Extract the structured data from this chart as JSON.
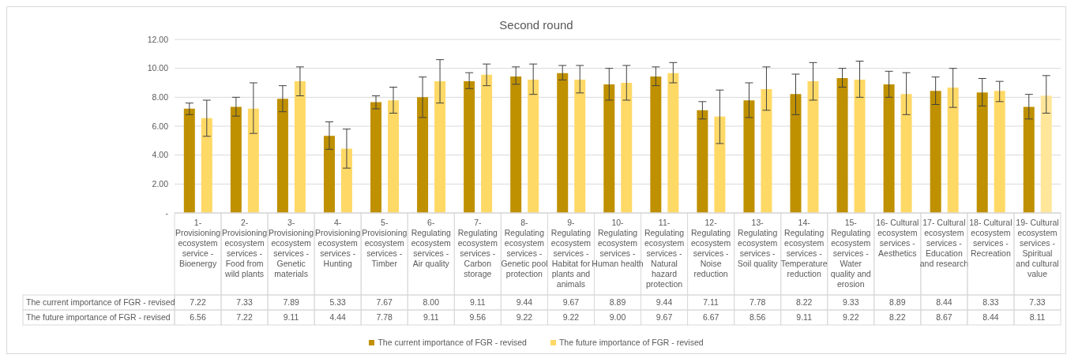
{
  "chart_data": {
    "type": "bar",
    "title": "Second round",
    "categories": [
      "1- Provisioning ecosystem service - Bioenergy",
      "2- Provisioning ecosystem services - Food from wild plants",
      "3- Provisioning ecosystem services - Genetic materials",
      "4- Provisioning ecosystem services - Hunting",
      "5- Provisioning ecosystem services - Timber",
      "6- Regulating ecosystem services - Air quality",
      "7- Regulating ecosystem services - Carbon storage",
      "8- Regulating ecosystem services - Genetic pool protection",
      "9- Regulating ecosystem services - Habitat for plants and animals",
      "10- Regulating ecosystem services - Human health",
      "11- Regulating ecosystem services - Natural hazard protection",
      "12- Regulating ecosystem services - Noise reduction",
      "13- Regulating ecosystem services - Soil quality",
      "14- Regulating ecosystem services - Temperature reduction",
      "15- Regulating ecosystem services - Water quality and erosion",
      "16- Cultural ecosystem services - Aesthetics",
      "17- Cultural ecosystem services - Education and research",
      "18- Cultural ecosystem services - Recreation",
      "19- Cultural ecosystem services - Spiritual and cultural value"
    ],
    "series": [
      {
        "name": "The current importance of FGR - revised",
        "color": "#bf9000",
        "values": [
          7.22,
          7.33,
          7.89,
          5.33,
          7.67,
          8.0,
          9.11,
          9.44,
          9.67,
          8.89,
          9.44,
          7.11,
          7.78,
          8.22,
          9.33,
          8.89,
          8.44,
          8.33,
          7.33
        ],
        "value_labels": [
          "7.22",
          "7.33",
          "7.89",
          "5.33",
          "7.67",
          "8.00",
          "9.11",
          "9.44",
          "9.67",
          "8.89",
          "9.44",
          "7.11",
          "7.78",
          "8.22",
          "9.33",
          "8.89",
          "8.44",
          "8.33",
          "7.33"
        ],
        "errors": [
          [
            6.8,
            7.6
          ],
          [
            6.7,
            8.0
          ],
          [
            7.0,
            8.8
          ],
          [
            4.4,
            6.3
          ],
          [
            7.2,
            8.1
          ],
          [
            6.6,
            9.4
          ],
          [
            8.6,
            9.7
          ],
          [
            8.9,
            10.1
          ],
          [
            9.2,
            10.2
          ],
          [
            7.8,
            10.0
          ],
          [
            8.8,
            10.1
          ],
          [
            6.5,
            7.7
          ],
          [
            6.6,
            9.0
          ],
          [
            6.8,
            9.6
          ],
          [
            8.7,
            10.0
          ],
          [
            8.0,
            9.8
          ],
          [
            7.5,
            9.4
          ],
          [
            7.4,
            9.3
          ],
          [
            6.5,
            8.2
          ]
        ]
      },
      {
        "name": "The future importance of FGR - revised",
        "color": "#ffd966",
        "colors": [
          "#ffd966",
          "#ffd966",
          "#ffd966",
          "#ffd966",
          "#ffd966",
          "#ffd966",
          "#ffd966",
          "#ffd966",
          "#ffd966",
          "#ffd966",
          "#ffd966",
          "#ffd966",
          "#ffd966",
          "#ffd966",
          "#ffd966",
          "#ffd966",
          "#ffd966",
          "#ffd966",
          "#ffe699"
        ],
        "values": [
          6.56,
          7.22,
          9.11,
          4.44,
          7.78,
          9.11,
          9.56,
          9.22,
          9.22,
          9.0,
          9.67,
          6.67,
          8.56,
          9.11,
          9.22,
          8.22,
          8.67,
          8.44,
          8.11
        ],
        "value_labels": [
          "6.56",
          "7.22",
          "9.11",
          "4.44",
          "7.78",
          "9.11",
          "9.56",
          "9.22",
          "9.22",
          "9.00",
          "9.67",
          "6.67",
          "8.56",
          "9.11",
          "9.22",
          "8.22",
          "8.67",
          "8.44",
          "8.11"
        ],
        "errors": [
          [
            5.3,
            7.8
          ],
          [
            5.5,
            9.0
          ],
          [
            8.1,
            10.1
          ],
          [
            3.1,
            5.8
          ],
          [
            6.9,
            8.7
          ],
          [
            7.6,
            10.6
          ],
          [
            8.8,
            10.3
          ],
          [
            8.2,
            10.3
          ],
          [
            8.3,
            10.2
          ],
          [
            7.8,
            10.2
          ],
          [
            9.0,
            10.4
          ],
          [
            4.8,
            8.5
          ],
          [
            7.1,
            10.1
          ],
          [
            7.8,
            10.4
          ],
          [
            8.0,
            10.5
          ],
          [
            6.8,
            9.7
          ],
          [
            7.3,
            10.0
          ],
          [
            7.7,
            9.1
          ],
          [
            6.9,
            9.5
          ]
        ]
      }
    ],
    "ylim": [
      0,
      12
    ],
    "yticks": [
      {
        "value": 0,
        "label": "-"
      },
      {
        "value": 2,
        "label": "2.00"
      },
      {
        "value": 4,
        "label": "4.00"
      },
      {
        "value": 6,
        "label": "6.00"
      },
      {
        "value": 8,
        "label": "8.00"
      },
      {
        "value": 10,
        "label": "10.00"
      },
      {
        "value": 12,
        "label": "12.00"
      }
    ],
    "grid": "y",
    "legend": "bottom"
  }
}
